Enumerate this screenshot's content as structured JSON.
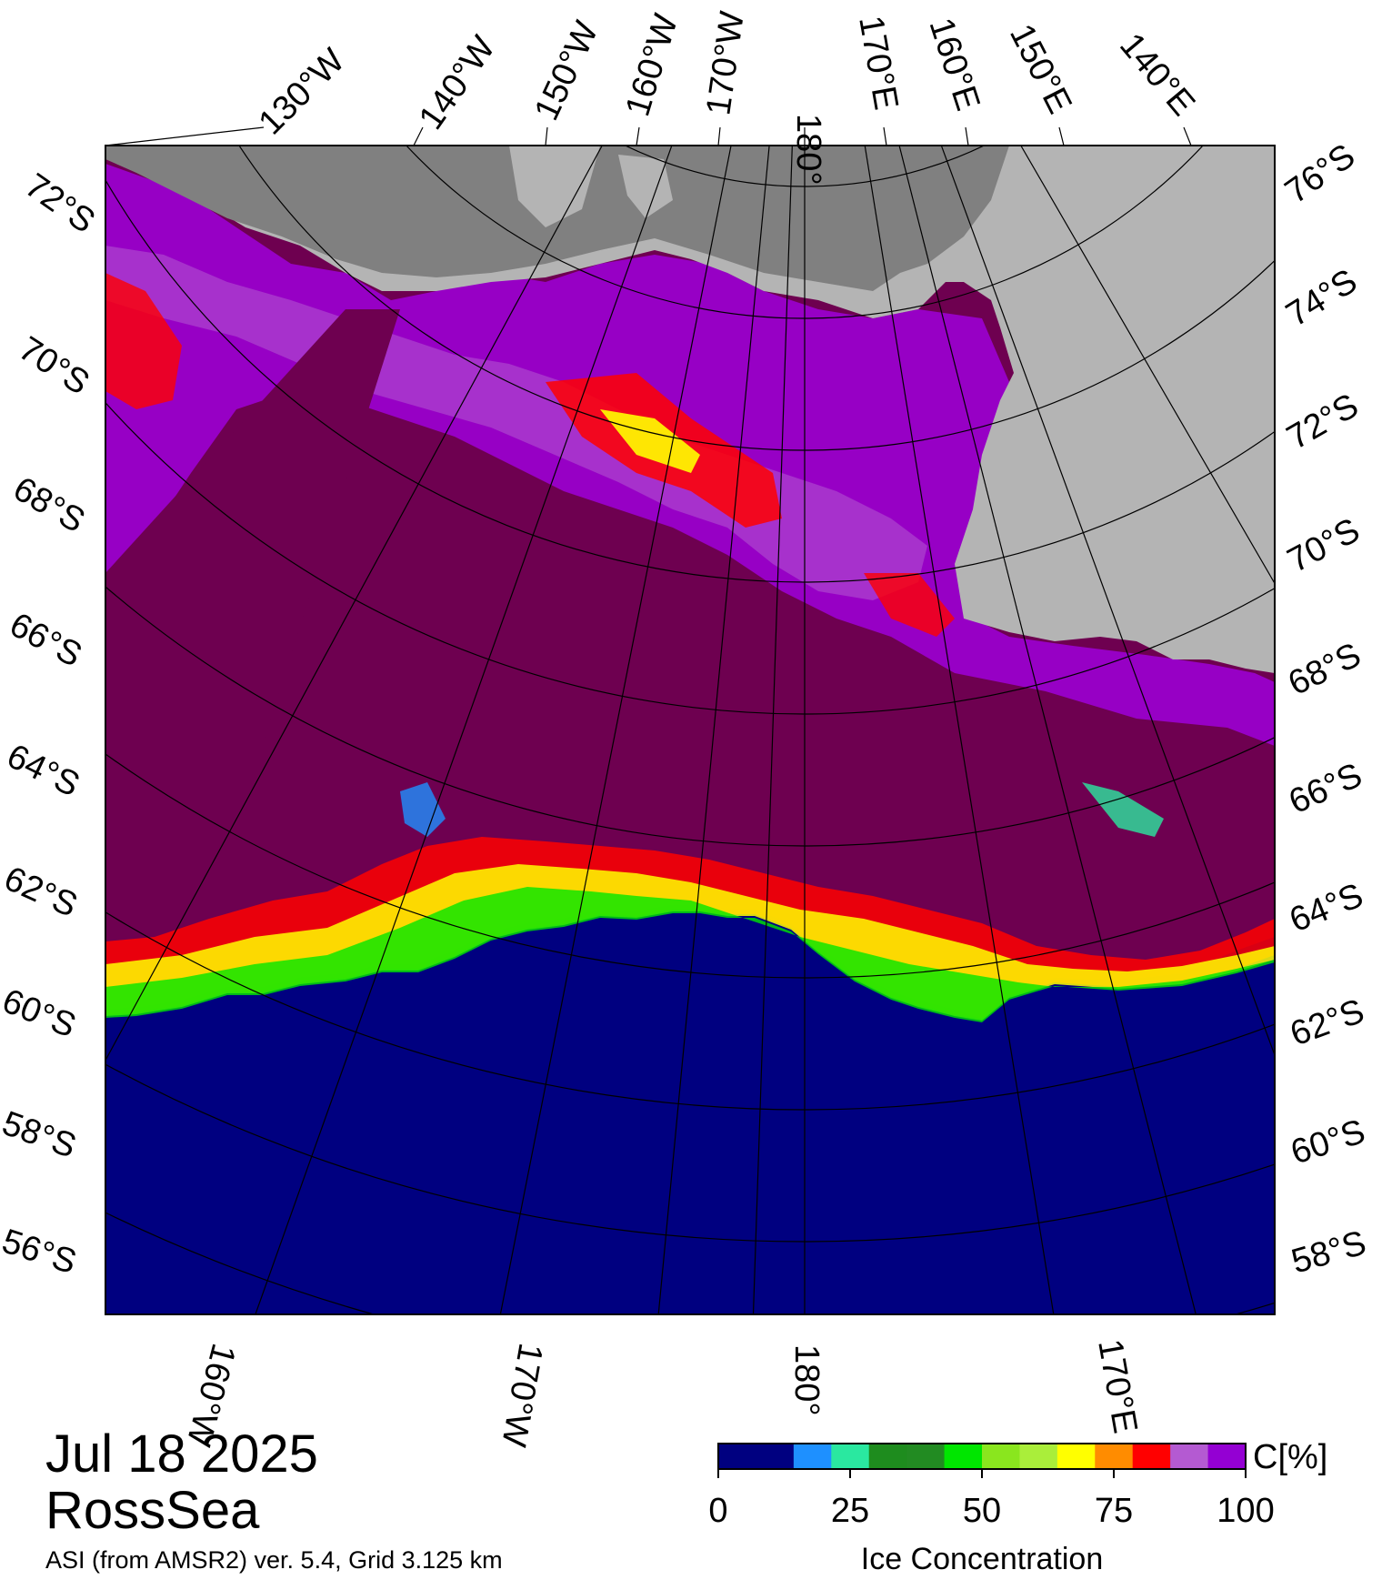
{
  "map": {
    "title_date": "Jul 18 2025",
    "region": "RossSea",
    "source": "ASI (from AMSR2) ver. 5.4,  Grid 3.125 km",
    "top_longitude_labels": [
      "130°W",
      "140°W",
      "150°W",
      "160°W",
      "170°W",
      "180°",
      "170°E",
      "160°E",
      "150°E",
      "140°E"
    ],
    "bottom_longitude_labels": [
      "160°W",
      "170°W",
      "180°",
      "170°E"
    ],
    "left_latitude_labels": [
      "72°S",
      "70°S",
      "68°S",
      "66°S",
      "64°S",
      "62°S",
      "60°S",
      "58°S",
      "56°S"
    ],
    "right_latitude_labels": [
      "76°S",
      "74°S",
      "72°S",
      "70°S",
      "68°S",
      "66°S",
      "64°S",
      "62°S",
      "60°S",
      "58°S"
    ],
    "colors": {
      "open_ocean": "#000080",
      "pack_ice": "#6e0050",
      "ice_purple": "#9b00d2",
      "ice_lilac": "#b45ad2",
      "land": "#b4b4b4",
      "ice_shelf": "#808080",
      "outside_map": "#ffffff"
    }
  },
  "legend": {
    "title": "Ice Concentration",
    "unit": "C[%]",
    "ticks": [
      "0",
      "25",
      "50",
      "75",
      "100"
    ],
    "colors": [
      "#000080",
      "#000080",
      "#1e90ff",
      "#2ae8a0",
      "#1e8c1e",
      "#228b22",
      "#00e600",
      "#8ae61e",
      "#aaee3a",
      "#ffff00",
      "#ff8c00",
      "#ff0000",
      "#b45ad2",
      "#9400d3"
    ]
  }
}
